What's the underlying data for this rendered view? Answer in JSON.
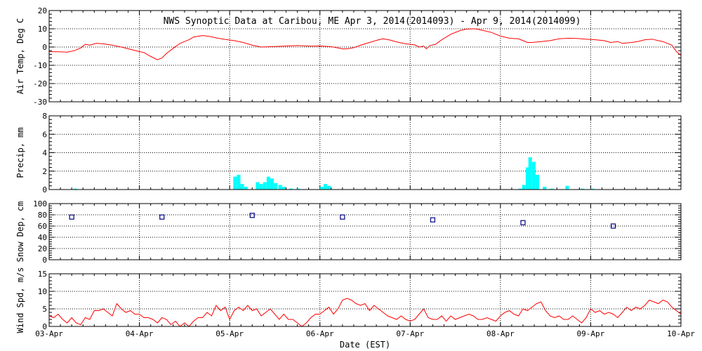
{
  "chart_data": {
    "type": "line",
    "title": "NWS Synoptic Data at Caribou, ME   Apr  3, 2014(2014093) - Apr  9, 2014(2014099)",
    "xlabel": "Date (EST)",
    "x_ticks": [
      "03-Apr",
      "04-Apr",
      "05-Apr",
      "06-Apr",
      "07-Apr",
      "08-Apr",
      "09-Apr",
      "10-Apr"
    ],
    "x_range": [
      0,
      7
    ],
    "grid": true,
    "colors": {
      "temp": "#ff0000",
      "precip": "#00ffff",
      "snow": "#000080",
      "wind": "#ff0000"
    },
    "panels": [
      {
        "id": "temp",
        "ylabel": "Air Temp, Deg C",
        "ylim": [
          -30,
          20
        ],
        "yticks": [
          20,
          10,
          0,
          -10,
          -20,
          -30
        ],
        "type": "line",
        "points": [
          [
            0,
            -2.5
          ],
          [
            0.1,
            -2.6
          ],
          [
            0.2,
            -2.8
          ],
          [
            0.28,
            -2.0
          ],
          [
            0.35,
            -0.5
          ],
          [
            0.4,
            1.5
          ],
          [
            0.45,
            1.0
          ],
          [
            0.52,
            2.0
          ],
          [
            0.6,
            1.8
          ],
          [
            0.7,
            1.0
          ],
          [
            0.8,
            0.0
          ],
          [
            0.92,
            -1.5
          ],
          [
            1.0,
            -2.5
          ],
          [
            1.05,
            -3.0
          ],
          [
            1.12,
            -5.0
          ],
          [
            1.2,
            -7.0
          ],
          [
            1.25,
            -6.0
          ],
          [
            1.3,
            -3.5
          ],
          [
            1.38,
            -0.5
          ],
          [
            1.45,
            2.0
          ],
          [
            1.5,
            3.0
          ],
          [
            1.55,
            4.0
          ],
          [
            1.6,
            5.5
          ],
          [
            1.7,
            6.3
          ],
          [
            1.78,
            5.8
          ],
          [
            1.85,
            5.0
          ],
          [
            1.95,
            4.2
          ],
          [
            2.05,
            3.5
          ],
          [
            2.15,
            2.5
          ],
          [
            2.25,
            1.0
          ],
          [
            2.35,
            0.0
          ],
          [
            2.45,
            0.2
          ],
          [
            2.6,
            0.5
          ],
          [
            2.75,
            0.8
          ],
          [
            2.9,
            0.5
          ],
          [
            3.0,
            0.6
          ],
          [
            3.1,
            0.3
          ],
          [
            3.15,
            0.0
          ],
          [
            3.2,
            -0.5
          ],
          [
            3.25,
            -1.0
          ],
          [
            3.3,
            -1.0
          ],
          [
            3.38,
            -0.3
          ],
          [
            3.45,
            1.0
          ],
          [
            3.55,
            2.5
          ],
          [
            3.65,
            4.0
          ],
          [
            3.7,
            4.5
          ],
          [
            3.78,
            3.8
          ],
          [
            3.85,
            2.8
          ],
          [
            3.95,
            1.8
          ],
          [
            4.05,
            1.2
          ],
          [
            4.1,
            0.0
          ],
          [
            4.15,
            0.5
          ],
          [
            4.18,
            -1.0
          ],
          [
            4.22,
            0.8
          ],
          [
            4.28,
            1.5
          ],
          [
            4.35,
            4.0
          ],
          [
            4.45,
            7.0
          ],
          [
            4.55,
            9.0
          ],
          [
            4.62,
            9.8
          ],
          [
            4.72,
            10.0
          ],
          [
            4.8,
            9.2
          ],
          [
            4.9,
            8.0
          ],
          [
            5.0,
            6.0
          ],
          [
            5.1,
            4.8
          ],
          [
            5.2,
            4.5
          ],
          [
            5.25,
            3.5
          ],
          [
            5.3,
            2.5
          ],
          [
            5.35,
            2.5
          ],
          [
            5.45,
            3.0
          ],
          [
            5.55,
            3.5
          ],
          [
            5.65,
            4.5
          ],
          [
            5.75,
            4.8
          ],
          [
            5.85,
            4.7
          ],
          [
            5.95,
            4.3
          ],
          [
            6.05,
            4.0
          ],
          [
            6.15,
            3.5
          ],
          [
            6.22,
            2.5
          ],
          [
            6.3,
            3.0
          ],
          [
            6.35,
            2.0
          ],
          [
            6.45,
            2.5
          ],
          [
            6.52,
            3.0
          ],
          [
            6.6,
            4.0
          ],
          [
            6.68,
            4.3
          ],
          [
            6.75,
            3.5
          ],
          [
            6.8,
            3.0
          ],
          [
            6.9,
            1.0
          ],
          [
            6.95,
            -2.5
          ],
          [
            7.0,
            -4.5
          ]
        ]
      },
      {
        "id": "precip",
        "ylabel": "Precip, mm",
        "ylim": [
          0,
          8
        ],
        "yticks": [
          0,
          2,
          4,
          6,
          8
        ],
        "type": "bar",
        "bar_width": 0.04166,
        "points": [
          [
            0.27,
            0.1
          ],
          [
            2.04,
            1.4
          ],
          [
            2.08,
            1.6
          ],
          [
            2.12,
            0.6
          ],
          [
            2.16,
            0.3
          ],
          [
            2.29,
            0.8
          ],
          [
            2.33,
            0.6
          ],
          [
            2.37,
            0.8
          ],
          [
            2.41,
            1.4
          ],
          [
            2.45,
            1.2
          ],
          [
            2.49,
            0.7
          ],
          [
            2.54,
            0.5
          ],
          [
            2.58,
            0.3
          ],
          [
            2.66,
            0.1
          ],
          [
            2.74,
            0.1
          ],
          [
            3.0,
            0.3
          ],
          [
            3.04,
            0.6
          ],
          [
            3.08,
            0.4
          ],
          [
            5.2,
            0.1
          ],
          [
            5.24,
            0.5
          ],
          [
            5.28,
            2.4
          ],
          [
            5.31,
            3.5
          ],
          [
            5.35,
            3.0
          ],
          [
            5.39,
            1.6
          ],
          [
            5.47,
            0.3
          ],
          [
            5.55,
            0.1
          ],
          [
            5.72,
            0.4
          ],
          [
            5.89,
            0.1
          ],
          [
            6.0,
            0.1
          ]
        ]
      },
      {
        "id": "snow",
        "ylabel": "Snow Dep, cm",
        "ylim": [
          0,
          100
        ],
        "yticks": [
          0,
          20,
          40,
          60,
          80,
          100
        ],
        "type": "scatter",
        "points": [
          [
            0.25,
            76
          ],
          [
            1.25,
            76
          ],
          [
            2.25,
            79
          ],
          [
            3.25,
            76
          ],
          [
            4.25,
            71
          ],
          [
            5.25,
            66
          ],
          [
            6.25,
            60
          ]
        ]
      },
      {
        "id": "wind",
        "ylabel": "Wind Spd, m/s",
        "ylim": [
          0,
          15
        ],
        "yticks": [
          0,
          5,
          10,
          15
        ],
        "type": "line",
        "points": [
          [
            0,
            3
          ],
          [
            0.05,
            2.5
          ],
          [
            0.1,
            3.5
          ],
          [
            0.15,
            2
          ],
          [
            0.2,
            1
          ],
          [
            0.25,
            2.5
          ],
          [
            0.3,
            1
          ],
          [
            0.35,
            0.5
          ],
          [
            0.4,
            2.5
          ],
          [
            0.45,
            2
          ],
          [
            0.5,
            4.5
          ],
          [
            0.55,
            4.5
          ],
          [
            0.6,
            5
          ],
          [
            0.65,
            4
          ],
          [
            0.7,
            3
          ],
          [
            0.75,
            6.5
          ],
          [
            0.8,
            5
          ],
          [
            0.85,
            4
          ],
          [
            0.9,
            4.5
          ],
          [
            0.95,
            3.5
          ],
          [
            1.0,
            3.5
          ],
          [
            1.05,
            2.5
          ],
          [
            1.1,
            2.5
          ],
          [
            1.15,
            2
          ],
          [
            1.2,
            1
          ],
          [
            1.25,
            2.5
          ],
          [
            1.3,
            2
          ],
          [
            1.35,
            0.5
          ],
          [
            1.4,
            1.5
          ],
          [
            1.45,
            0
          ],
          [
            1.5,
            1
          ],
          [
            1.55,
            0
          ],
          [
            1.6,
            1.5
          ],
          [
            1.65,
            2.5
          ],
          [
            1.7,
            2.5
          ],
          [
            1.75,
            4
          ],
          [
            1.8,
            3
          ],
          [
            1.85,
            6
          ],
          [
            1.9,
            4.5
          ],
          [
            1.95,
            5.5
          ],
          [
            2.0,
            2
          ],
          [
            2.05,
            4.5
          ],
          [
            2.1,
            5.5
          ],
          [
            2.15,
            4.5
          ],
          [
            2.2,
            6
          ],
          [
            2.25,
            4.5
          ],
          [
            2.3,
            5
          ],
          [
            2.35,
            3
          ],
          [
            2.4,
            4
          ],
          [
            2.45,
            5
          ],
          [
            2.5,
            3.5
          ],
          [
            2.55,
            2
          ],
          [
            2.6,
            3.5
          ],
          [
            2.65,
            2
          ],
          [
            2.7,
            2
          ],
          [
            2.75,
            1
          ],
          [
            2.8,
            0
          ],
          [
            2.85,
            1
          ],
          [
            2.9,
            2.5
          ],
          [
            2.95,
            3.5
          ],
          [
            3.0,
            3.5
          ],
          [
            3.05,
            4.5
          ],
          [
            3.1,
            5.5
          ],
          [
            3.15,
            3.5
          ],
          [
            3.2,
            5
          ],
          [
            3.25,
            7.5
          ],
          [
            3.3,
            8
          ],
          [
            3.35,
            7.5
          ],
          [
            3.4,
            6.5
          ],
          [
            3.45,
            6
          ],
          [
            3.5,
            6.5
          ],
          [
            3.55,
            4.5
          ],
          [
            3.6,
            6
          ],
          [
            3.65,
            5
          ],
          [
            3.7,
            4
          ],
          [
            3.75,
            3
          ],
          [
            3.8,
            2.5
          ],
          [
            3.85,
            2
          ],
          [
            3.9,
            3
          ],
          [
            3.95,
            2
          ],
          [
            4.0,
            1.5
          ],
          [
            4.05,
            2
          ],
          [
            4.1,
            3.5
          ],
          [
            4.15,
            5
          ],
          [
            4.2,
            2.5
          ],
          [
            4.25,
            2
          ],
          [
            4.3,
            2
          ],
          [
            4.35,
            3
          ],
          [
            4.4,
            1.5
          ],
          [
            4.45,
            3
          ],
          [
            4.5,
            2
          ],
          [
            4.55,
            2.5
          ],
          [
            4.6,
            3
          ],
          [
            4.65,
            3.5
          ],
          [
            4.7,
            3
          ],
          [
            4.75,
            2
          ],
          [
            4.8,
            2
          ],
          [
            4.85,
            2.5
          ],
          [
            4.9,
            2
          ],
          [
            4.95,
            1.5
          ],
          [
            5.0,
            3
          ],
          [
            5.05,
            4
          ],
          [
            5.1,
            4.5
          ],
          [
            5.15,
            3.5
          ],
          [
            5.2,
            3
          ],
          [
            5.25,
            5
          ],
          [
            5.3,
            4.5
          ],
          [
            5.35,
            5.5
          ],
          [
            5.4,
            6.5
          ],
          [
            5.45,
            7
          ],
          [
            5.5,
            4.5
          ],
          [
            5.55,
            3
          ],
          [
            5.6,
            2.5
          ],
          [
            5.65,
            3
          ],
          [
            5.7,
            2
          ],
          [
            5.75,
            2
          ],
          [
            5.8,
            3
          ],
          [
            5.85,
            2
          ],
          [
            5.9,
            1
          ],
          [
            5.95,
            2.5
          ],
          [
            6.0,
            5
          ],
          [
            6.05,
            4
          ],
          [
            6.1,
            4.5
          ],
          [
            6.15,
            3.5
          ],
          [
            6.2,
            4
          ],
          [
            6.25,
            3.5
          ],
          [
            6.3,
            2.5
          ],
          [
            6.35,
            4
          ],
          [
            6.4,
            5.5
          ],
          [
            6.45,
            4.5
          ],
          [
            6.5,
            5.5
          ],
          [
            6.55,
            5
          ],
          [
            6.6,
            6
          ],
          [
            6.65,
            7.5
          ],
          [
            6.7,
            7
          ],
          [
            6.75,
            6.5
          ],
          [
            6.8,
            7.5
          ],
          [
            6.85,
            7
          ],
          [
            6.9,
            5.5
          ],
          [
            6.95,
            4.5
          ],
          [
            7.0,
            3.5
          ]
        ]
      }
    ]
  }
}
